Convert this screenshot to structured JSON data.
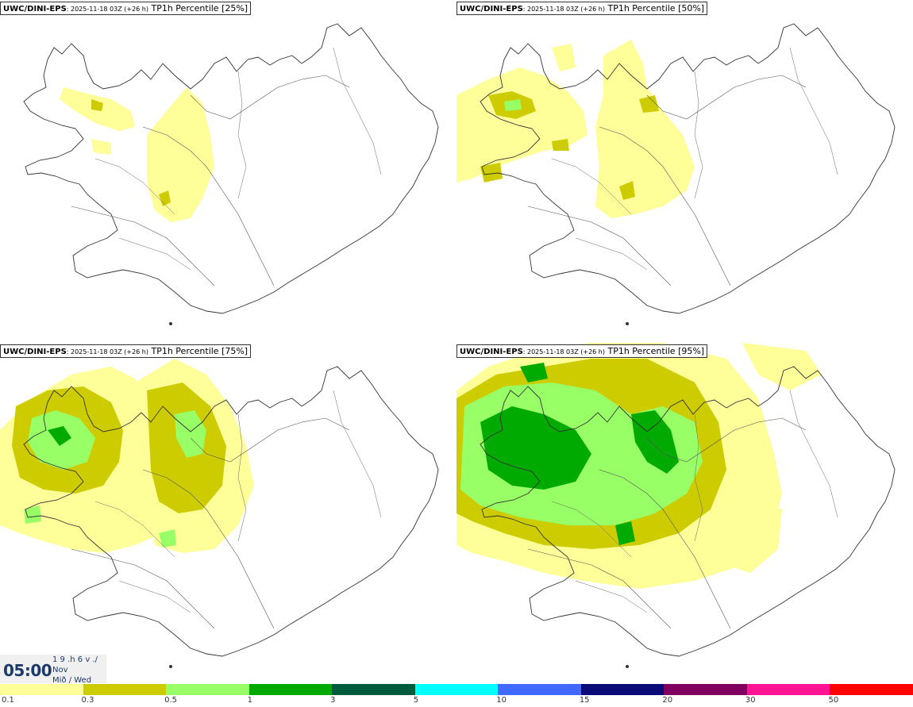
{
  "panels": [
    {
      "model": "UWC/DINI-EPS",
      "meta": ": 2025-11-18 03Z (+26 h)",
      "product": "TP1h Percentile [25%]"
    },
    {
      "model": "UWC/DINI-EPS",
      "meta": ": 2025-11-18 03Z (+26 h)",
      "product": "TP1h Percentile [50%]"
    },
    {
      "model": "UWC/DINI-EPS",
      "meta": ": 2025-11-18 03Z (+26 h)",
      "product": "TP1h Percentile [75%]"
    },
    {
      "model": "UWC/DINI-EPS",
      "meta": ": 2025-11-18 03Z (+26 h)",
      "product": "TP1h Percentile [95%]"
    }
  ],
  "time": {
    "clock": "05:00",
    "line1": "1 9 .h 6 v ./",
    "line2": "Nov",
    "line3": "Mið / Wed"
  },
  "legend": {
    "colors": [
      "#ffff99",
      "#cccc00",
      "#99ff66",
      "#00aa00",
      "#005a3c",
      "#00ffff",
      "#4169ff",
      "#0a0a78",
      "#800060",
      "#ff1493",
      "#ff0000"
    ],
    "labels": [
      "0.1",
      "0.3",
      "0.5",
      "1",
      "3",
      "5",
      "10",
      "15",
      "20",
      "30",
      "50"
    ]
  },
  "precip_colors": {
    "light": "#ffff99",
    "low": "#cccc00",
    "mid": "#99ff66",
    "high": "#00aa00"
  }
}
